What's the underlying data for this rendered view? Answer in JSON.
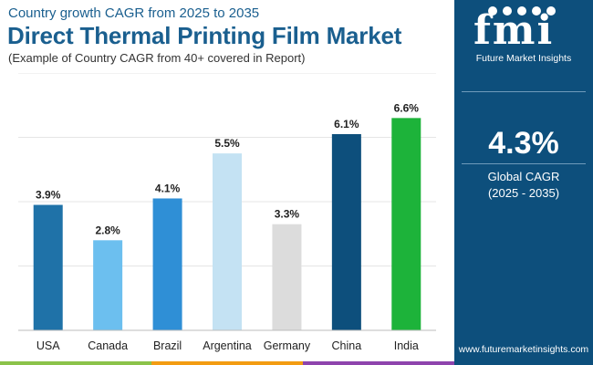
{
  "header": {
    "supertitle": "Country growth CAGR from 2025 to 2035",
    "title": "Direct Thermal Printing Film Market",
    "subtitle": "(Example of Country CAGR from 40+ covered in Report)"
  },
  "brand": {
    "logo_text": "fmi",
    "caption": "Future Market Insights",
    "website": "www.futuremarketinsights.com"
  },
  "summary": {
    "value": "4.3%",
    "label": "Global CAGR",
    "period": "(2025 - 2035)"
  },
  "colors": {
    "panel": "#0d4f7c",
    "title": "#1a5f8f",
    "stripe": [
      "#8bc34a",
      "#f39c12",
      "#8e44ad"
    ]
  },
  "chart_data": {
    "type": "bar",
    "title": "Direct Thermal Printing Film Market",
    "categories": [
      "USA",
      "Canada",
      "Brazil",
      "Argentina",
      "Germany",
      "China",
      "India"
    ],
    "values": [
      3.9,
      2.8,
      4.1,
      5.5,
      3.3,
      6.1,
      6.6
    ],
    "value_labels": [
      "3.9%",
      "2.8%",
      "4.1%",
      "5.5%",
      "3.3%",
      "6.1%",
      "6.6%"
    ],
    "colors": [
      "#1f72a8",
      "#6cbfef",
      "#2f8fd6",
      "#c4e2f3",
      "#dcdcdc",
      "#0d4f7c",
      "#1db33a"
    ],
    "ylim": [
      0,
      8
    ],
    "grid": true,
    "legend": "none"
  }
}
